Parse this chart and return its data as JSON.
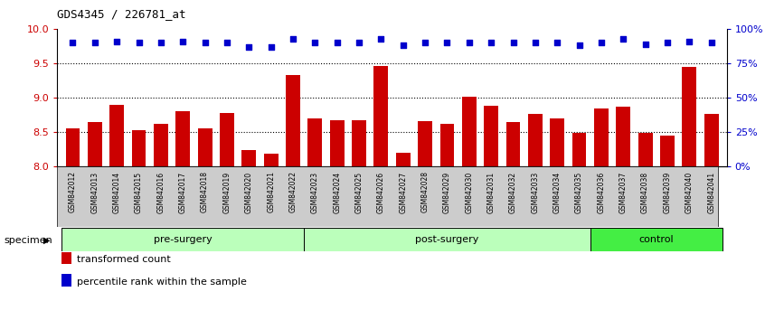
{
  "title": "GDS4345 / 226781_at",
  "samples": [
    "GSM842012",
    "GSM842013",
    "GSM842014",
    "GSM842015",
    "GSM842016",
    "GSM842017",
    "GSM842018",
    "GSM842019",
    "GSM842020",
    "GSM842021",
    "GSM842022",
    "GSM842023",
    "GSM842024",
    "GSM842025",
    "GSM842026",
    "GSM842027",
    "GSM842028",
    "GSM842029",
    "GSM842030",
    "GSM842031",
    "GSM842032",
    "GSM842033",
    "GSM842034",
    "GSM842035",
    "GSM842036",
    "GSM842037",
    "GSM842038",
    "GSM842039",
    "GSM842040",
    "GSM842041"
  ],
  "bar_values": [
    8.55,
    8.65,
    8.9,
    8.53,
    8.62,
    8.8,
    8.55,
    8.78,
    8.24,
    8.19,
    9.33,
    8.7,
    8.67,
    8.67,
    9.46,
    8.2,
    8.66,
    8.62,
    9.01,
    8.88,
    8.64,
    8.76,
    8.7,
    8.49,
    8.84,
    8.87,
    8.49,
    8.45,
    9.44,
    8.76
  ],
  "percentile_values": [
    90,
    90,
    91,
    90,
    90,
    91,
    90,
    90,
    87,
    87,
    93,
    90,
    90,
    90,
    93,
    88,
    90,
    90,
    90,
    90,
    90,
    90,
    90,
    88,
    90,
    93,
    89,
    90,
    91,
    90
  ],
  "bar_color": "#cc0000",
  "dot_color": "#0000cc",
  "ylim_left": [
    8.0,
    10.0
  ],
  "ylim_right": [
    0,
    100
  ],
  "yticks_left": [
    8.0,
    8.5,
    9.0,
    9.5,
    10.0
  ],
  "yticks_right": [
    0,
    25,
    50,
    75,
    100
  ],
  "ytick_labels_right": [
    "0%",
    "25%",
    "50%",
    "75%",
    "100%"
  ],
  "group_info": [
    {
      "label": "pre-surgery",
      "start": 0,
      "end": 11,
      "color": "#bbffbb"
    },
    {
      "label": "post-surgery",
      "start": 11,
      "end": 24,
      "color": "#bbffbb"
    },
    {
      "label": "control",
      "start": 24,
      "end": 30,
      "color": "#44ee44"
    }
  ],
  "specimen_label": "specimen",
  "legend_bar_label": "transformed count",
  "legend_dot_label": "percentile rank within the sample",
  "bg_color": "#ffffff",
  "tick_label_color_left": "#cc0000",
  "tick_label_color_right": "#0000cc",
  "xtick_bg_color": "#cccccc"
}
